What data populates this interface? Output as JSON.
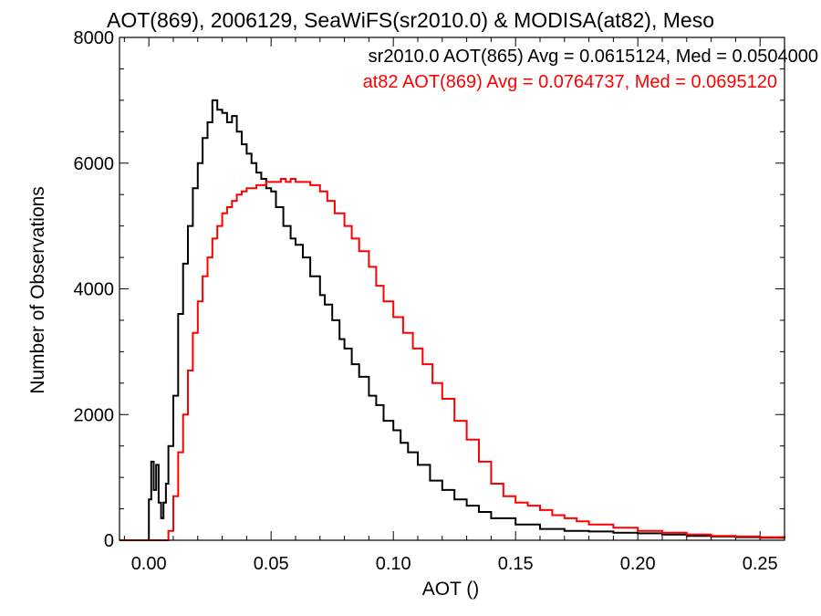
{
  "chart_data": {
    "type": "line",
    "title": "AOT(869), 2006129, SeaWiFS(sr2010.0) & MODISA(at82), Meso",
    "xlabel": "AOT ()",
    "ylabel": "Number of Observations",
    "xlim": [
      -0.012,
      0.26
    ],
    "ylim": [
      0,
      8000
    ],
    "x_ticks": [
      0.0,
      0.05,
      0.1,
      0.15,
      0.2,
      0.25
    ],
    "x_tick_labels": [
      "0.00",
      "0.05",
      "0.10",
      "0.15",
      "0.20",
      "0.25"
    ],
    "y_ticks": [
      0,
      2000,
      4000,
      6000,
      8000
    ],
    "y_tick_labels": [
      "0",
      "2000",
      "4000",
      "6000",
      "8000"
    ],
    "grid": false,
    "annotations": [
      {
        "text": "sr2010.0 AOT(865) Avg = 0.0615124, Med = 0.0504000",
        "color": "#000000"
      },
      {
        "text": "at82 AOT(869) Avg = 0.0764737, Med = 0.0695120",
        "color": "#ff0000"
      }
    ],
    "series": [
      {
        "color": "#000000",
        "step": true,
        "x": [
          -0.012,
          -0.001,
          0.0,
          0.001,
          0.002,
          0.003,
          0.004,
          0.005,
          0.006,
          0.007,
          0.008,
          0.01,
          0.012,
          0.014,
          0.016,
          0.018,
          0.02,
          0.022,
          0.024,
          0.026,
          0.028,
          0.03,
          0.032,
          0.034,
          0.036,
          0.038,
          0.04,
          0.042,
          0.044,
          0.046,
          0.048,
          0.05,
          0.052,
          0.055,
          0.058,
          0.06,
          0.063,
          0.066,
          0.07,
          0.072,
          0.075,
          0.078,
          0.08,
          0.083,
          0.086,
          0.09,
          0.093,
          0.096,
          0.1,
          0.103,
          0.106,
          0.11,
          0.115,
          0.12,
          0.125,
          0.13,
          0.135,
          0.14,
          0.15,
          0.16,
          0.17,
          0.18,
          0.19,
          0.2,
          0.21,
          0.22,
          0.23,
          0.24,
          0.25,
          0.26
        ],
        "y": [
          0,
          0,
          650,
          1250,
          800,
          1200,
          600,
          350,
          600,
          900,
          1500,
          2300,
          3600,
          4400,
          5000,
          5600,
          6000,
          6400,
          6650,
          7000,
          6850,
          6800,
          6650,
          6750,
          6500,
          6300,
          6150,
          6000,
          5850,
          5750,
          5600,
          5550,
          5300,
          5000,
          4800,
          4700,
          4500,
          4200,
          3900,
          3750,
          3500,
          3200,
          3050,
          2800,
          2600,
          2300,
          2150,
          1900,
          1750,
          1550,
          1400,
          1200,
          950,
          800,
          650,
          550,
          450,
          350,
          250,
          180,
          150,
          140,
          120,
          110,
          90,
          70,
          60,
          50,
          40,
          30
        ]
      },
      {
        "color": "#ff0000",
        "step": true,
        "x": [
          -0.012,
          0.006,
          0.008,
          0.01,
          0.012,
          0.014,
          0.016,
          0.018,
          0.02,
          0.022,
          0.024,
          0.026,
          0.028,
          0.03,
          0.032,
          0.034,
          0.036,
          0.038,
          0.04,
          0.042,
          0.044,
          0.046,
          0.048,
          0.05,
          0.052,
          0.054,
          0.056,
          0.058,
          0.06,
          0.063,
          0.066,
          0.07,
          0.073,
          0.076,
          0.08,
          0.083,
          0.086,
          0.09,
          0.093,
          0.096,
          0.1,
          0.104,
          0.108,
          0.112,
          0.116,
          0.12,
          0.125,
          0.13,
          0.135,
          0.14,
          0.145,
          0.15,
          0.155,
          0.16,
          0.165,
          0.17,
          0.175,
          0.18,
          0.19,
          0.2,
          0.21,
          0.22,
          0.23,
          0.24,
          0.25,
          0.26
        ],
        "y": [
          0,
          0,
          150,
          700,
          1400,
          2000,
          2700,
          3300,
          3800,
          4200,
          4500,
          4800,
          5000,
          5200,
          5300,
          5400,
          5500,
          5550,
          5600,
          5600,
          5650,
          5650,
          5700,
          5700,
          5700,
          5750,
          5700,
          5750,
          5700,
          5700,
          5650,
          5550,
          5400,
          5200,
          5000,
          4800,
          4600,
          4350,
          4050,
          3800,
          3550,
          3300,
          3050,
          2800,
          2500,
          2250,
          1900,
          1600,
          1250,
          900,
          700,
          600,
          550,
          480,
          400,
          350,
          300,
          250,
          200,
          150,
          120,
          90,
          70,
          60,
          50,
          40
        ]
      }
    ]
  }
}
